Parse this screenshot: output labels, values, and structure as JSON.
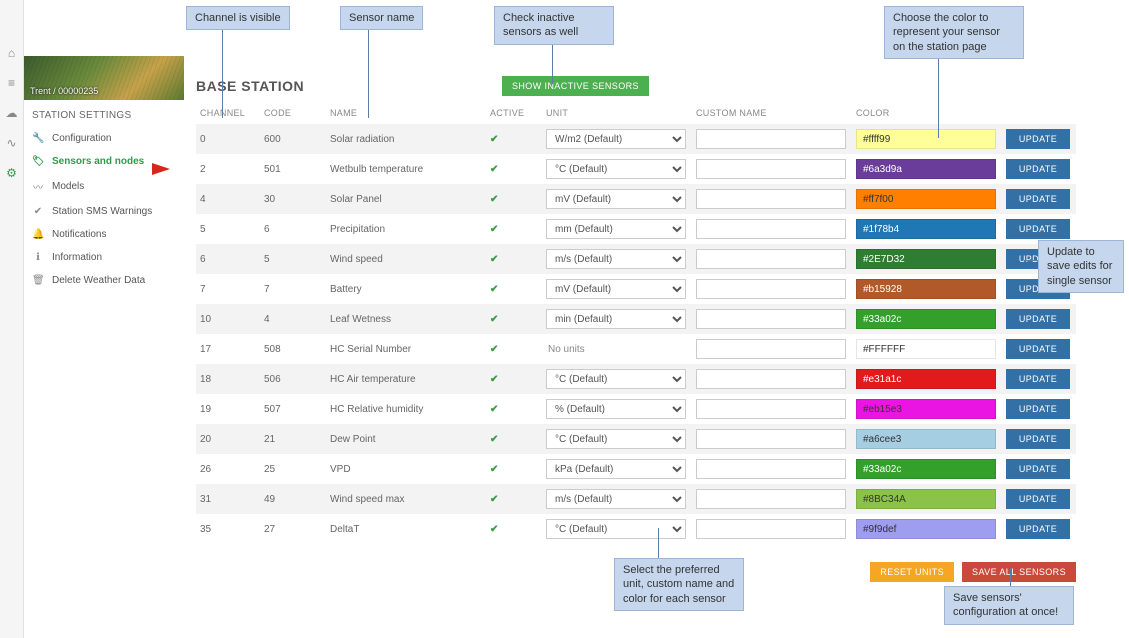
{
  "callouts": {
    "channel": "Channel is visible",
    "sensor": "Sensor name",
    "inactive": "Check inactive sensors as well",
    "color": "Choose the color to represent your sensor on the station page",
    "update": "Update to save edits for single sensor",
    "unit": "Select the preferred unit, custom name and color for each sensor",
    "saveall": "Save sensors' configuration at once!"
  },
  "rail": [
    "home",
    "stats",
    "cloud",
    "link",
    "gear"
  ],
  "sidebar": {
    "hero_caption": "Trent / 00000235",
    "title": "STATION SETTINGS",
    "items": [
      {
        "icon": "wrench",
        "label": "Configuration"
      },
      {
        "icon": "tag",
        "label": "Sensors and nodes",
        "active": true
      },
      {
        "icon": "wave",
        "label": "Models"
      },
      {
        "icon": "shield",
        "label": "Station SMS Warnings"
      },
      {
        "icon": "bell",
        "label": "Notifications"
      },
      {
        "icon": "info",
        "label": "Information"
      },
      {
        "icon": "trash",
        "label": "Delete Weather Data"
      }
    ]
  },
  "page": {
    "title": "BASE STATION",
    "show_inactive": "SHOW INACTIVE SENSORS",
    "headers": [
      "CHANNEL",
      "CODE",
      "NAME",
      "ACTIVE",
      "UNIT",
      "CUSTOM NAME",
      "COLOR"
    ],
    "update_label": "UPDATE",
    "reset_label": "RESET UNITS",
    "save_all_label": "SAVE ALL SENSORS"
  },
  "rows": [
    {
      "ch": "0",
      "code": "600",
      "name": "Solar radiation",
      "unit": "W/m2 (Default)",
      "color": "#ffff99",
      "dark": false
    },
    {
      "ch": "2",
      "code": "501",
      "name": "Wetbulb temperature",
      "unit": "°C (Default)",
      "color": "#6a3d9a",
      "dark": true
    },
    {
      "ch": "4",
      "code": "30",
      "name": "Solar Panel",
      "unit": "mV (Default)",
      "color": "#ff7f00",
      "dark": false
    },
    {
      "ch": "5",
      "code": "6",
      "name": "Precipitation",
      "unit": "mm (Default)",
      "color": "#1f78b4",
      "dark": true
    },
    {
      "ch": "6",
      "code": "5",
      "name": "Wind speed",
      "unit": "m/s (Default)",
      "color": "#2E7D32",
      "dark": true
    },
    {
      "ch": "7",
      "code": "7",
      "name": "Battery",
      "unit": "mV (Default)",
      "color": "#b15928",
      "dark": true
    },
    {
      "ch": "10",
      "code": "4",
      "name": "Leaf Wetness",
      "unit": "min (Default)",
      "color": "#33a02c",
      "dark": true
    },
    {
      "ch": "17",
      "code": "508",
      "name": "HC Serial Number",
      "unit": null,
      "nounit": "No units",
      "color": "#FFFFFF",
      "color_label": "#FFFFFF",
      "dark": false
    },
    {
      "ch": "18",
      "code": "506",
      "name": "HC Air temperature",
      "unit": "°C (Default)",
      "color": "#e31a1c",
      "dark": true
    },
    {
      "ch": "19",
      "code": "507",
      "name": "HC Relative humidity",
      "unit": "% (Default)",
      "color": "#eb15e3",
      "dark": false
    },
    {
      "ch": "20",
      "code": "21",
      "name": "Dew Point",
      "unit": "°C (Default)",
      "color": "#a6cee3",
      "dark": false
    },
    {
      "ch": "26",
      "code": "25",
      "name": "VPD",
      "unit": "kPa (Default)",
      "color": "#33a02c",
      "dark": true
    },
    {
      "ch": "31",
      "code": "49",
      "name": "Wind speed max",
      "unit": "m/s (Default)",
      "color": "#8BC34A",
      "dark": false
    },
    {
      "ch": "35",
      "code": "27",
      "name": "DeltaT",
      "unit": "°C (Default)",
      "color": "#9f9def",
      "dark": false
    }
  ],
  "iconGlyph": {
    "home": "⌂",
    "stats": "≡",
    "cloud": "☁",
    "link": "∿",
    "gear": "⚙",
    "wrench": "🔧",
    "tag": "🏷",
    "wave": "〰",
    "shield": "✔",
    "bell": "🔔",
    "info": "ℹ",
    "trash": "🗑"
  }
}
